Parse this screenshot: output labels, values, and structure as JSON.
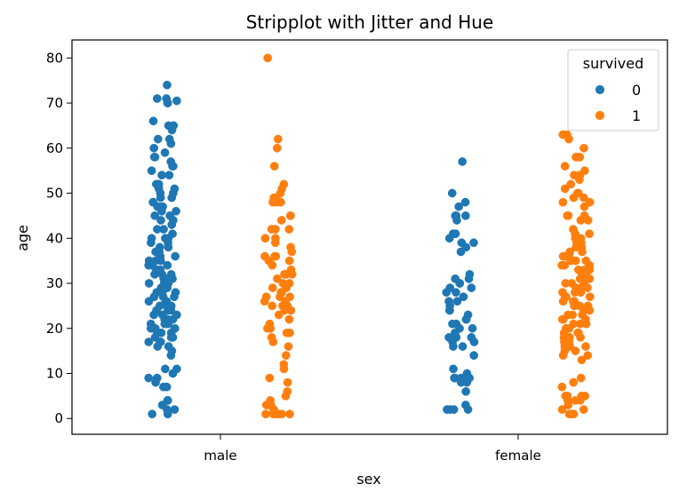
{
  "chart_data": {
    "type": "scatter",
    "title": "Stripplot with Jitter and Hue",
    "xlabel": "sex",
    "ylabel": "age",
    "categories": [
      "male",
      "female"
    ],
    "hue_name": "survived",
    "yticks": [
      0,
      10,
      20,
      30,
      40,
      50,
      60,
      70,
      80
    ],
    "ylim": [
      -3.5,
      84
    ],
    "grid": false,
    "legend_position": "top-right",
    "series": [
      {
        "name": "0",
        "color": "#1f77b4",
        "points": {
          "male": [
            74,
            71,
            71,
            70.5,
            70,
            70,
            66,
            65,
            65,
            64,
            62,
            62,
            61,
            60,
            59,
            58,
            58,
            57,
            56,
            56,
            55,
            54,
            54,
            52,
            52,
            51,
            51,
            50,
            50,
            49,
            49,
            48,
            48,
            47,
            47,
            47,
            46,
            46,
            45,
            45,
            44,
            44,
            43,
            42,
            42,
            41,
            40,
            40,
            40,
            39,
            39,
            38,
            38,
            37,
            37,
            36,
            36,
            36,
            35,
            35,
            35,
            34,
            34,
            34,
            33,
            33,
            33,
            32,
            32,
            32,
            31,
            31,
            31,
            30,
            30,
            30,
            29,
            29,
            29,
            28,
            28,
            28,
            27,
            27,
            27,
            26,
            26,
            26,
            25,
            25,
            25,
            24,
            24,
            24,
            23,
            23,
            23,
            22,
            22,
            22,
            21,
            21,
            21,
            20,
            20,
            20,
            19,
            19,
            19,
            18,
            18,
            18,
            17,
            17,
            17,
            16,
            16,
            15,
            14,
            11,
            11,
            10,
            9,
            9,
            8,
            7,
            7,
            4,
            4,
            3,
            2,
            2,
            1,
            1
          ],
          "female": [
            57,
            50,
            48,
            47,
            45,
            45,
            45,
            44,
            41,
            41,
            40,
            39,
            39,
            38,
            37,
            32,
            31,
            31,
            30,
            30,
            29,
            29,
            28,
            28,
            27,
            26,
            26,
            25,
            24,
            24,
            23,
            22,
            22,
            21,
            21,
            20,
            20,
            19,
            18,
            18,
            18,
            17,
            17,
            16,
            16,
            14,
            11,
            10,
            9,
            9,
            9,
            9,
            8,
            8,
            6,
            3,
            2,
            2,
            2,
            2
          ]
        }
      },
      {
        "name": "1",
        "color": "#ff7f0e",
        "points": {
          "male": [
            80,
            62,
            60,
            56,
            52,
            51,
            50,
            49,
            49,
            48,
            48,
            48,
            45,
            45,
            44,
            42,
            42,
            42,
            40,
            40,
            39,
            38,
            37,
            36,
            36,
            36,
            35,
            35,
            34,
            33,
            32,
            32,
            32,
            31,
            30,
            30,
            29,
            29,
            28,
            28,
            27,
            27,
            27,
            26,
            26,
            25,
            25,
            25,
            24,
            24,
            23,
            22,
            21,
            20,
            20,
            19,
            19,
            18,
            17,
            16,
            14,
            12,
            11,
            9,
            8,
            6,
            5,
            4,
            3,
            3,
            3,
            2,
            1,
            1,
            1,
            1,
            1,
            1
          ],
          "female": [
            63,
            63,
            62,
            60,
            58,
            58,
            58,
            56,
            55,
            54,
            54,
            53,
            52,
            51,
            50,
            50,
            49,
            49,
            48,
            48,
            47,
            45,
            45,
            45,
            44,
            44,
            42,
            41,
            41,
            40,
            40,
            39,
            39,
            38,
            38,
            37,
            37,
            36,
            36,
            36,
            35,
            35,
            35,
            34,
            34,
            34,
            33,
            33,
            33,
            32,
            32,
            32,
            31,
            31,
            31,
            30,
            30,
            30,
            29,
            29,
            29,
            28,
            28,
            28,
            27,
            27,
            27,
            26,
            26,
            26,
            25,
            25,
            25,
            24,
            24,
            24,
            23,
            23,
            23,
            22,
            22,
            22,
            21,
            21,
            21,
            20,
            20,
            19,
            19,
            19,
            18,
            18,
            18,
            17,
            17,
            17,
            16,
            16,
            16,
            15,
            15,
            14,
            14,
            13,
            9,
            8,
            7,
            5,
            5,
            5,
            5,
            4,
            4,
            4,
            3,
            2,
            2,
            1,
            1,
            1,
            1
          ]
        }
      }
    ]
  }
}
